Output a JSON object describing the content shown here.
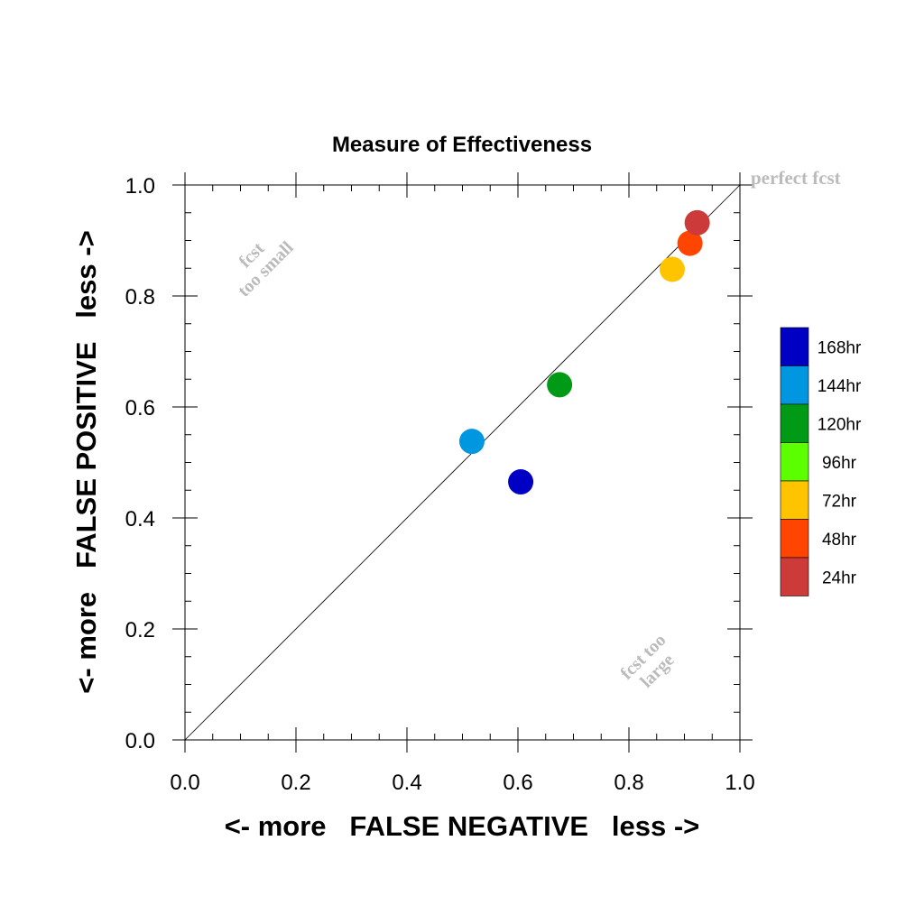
{
  "chart_data": {
    "type": "scatter",
    "title": "Measure of Effectiveness",
    "xlabel": "<- more   FALSE NEGATIVE   less ->",
    "ylabel": "<- more   FALSE POSITIVE   less ->",
    "xlim": [
      0.0,
      1.0
    ],
    "ylim": [
      0.0,
      1.0
    ],
    "x_ticks": [
      "0.0",
      "0.2",
      "0.4",
      "0.6",
      "0.8",
      "1.0"
    ],
    "y_ticks": [
      "0.0",
      "0.2",
      "0.4",
      "0.6",
      "0.8",
      "1.0"
    ],
    "grid": false,
    "diagonal_reference_line": true,
    "legend_position": "right",
    "annotations": {
      "perfect": "perfect fcst",
      "too_small_1": "fcst",
      "too_small_2": "too small",
      "too_large_1": "fcst too",
      "too_large_2": "large"
    },
    "series": [
      {
        "name": "168hr",
        "color": "#0000c4",
        "x": 0.605,
        "y": 0.465
      },
      {
        "name": "144hr",
        "color": "#0097e0",
        "x": 0.517,
        "y": 0.538
      },
      {
        "name": "120hr",
        "color": "#009a17",
        "x": 0.675,
        "y": 0.64
      },
      {
        "name": "96hr",
        "color": "#5cff00"
      },
      {
        "name": "72hr",
        "color": "#ffc400",
        "x": 0.878,
        "y": 0.848
      },
      {
        "name": "48hr",
        "color": "#ff4500",
        "x": 0.91,
        "y": 0.895
      },
      {
        "name": "24hr",
        "color": "#cc3a3a",
        "x": 0.923,
        "y": 0.932
      }
    ]
  }
}
